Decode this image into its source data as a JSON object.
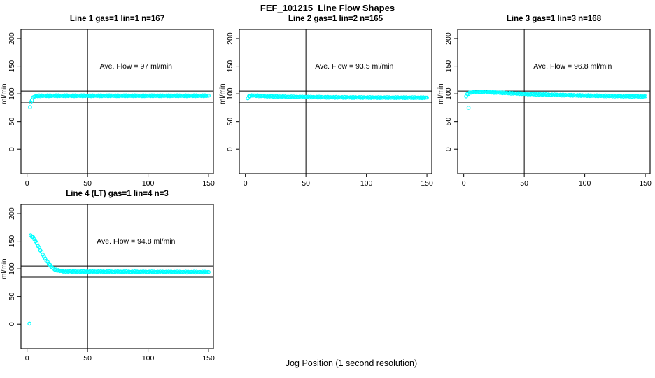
{
  "figure": {
    "title": "FEF_101215  Line Flow Shapes",
    "xlabel": "Jog Position (1 second resolution)",
    "ylabel": "ml/min"
  },
  "style": {
    "point_color": "#00FFFF",
    "axis_color": "#000000",
    "background": "#FFFFFF",
    "point_marker": "open-circle"
  },
  "chart_data": [
    {
      "type": "scatter",
      "title": "Line 1 gas=1 lin=1 n=167",
      "annotation": "Ave. Flow =  97  ml/min",
      "ave_flow_ml_min": 97,
      "gas": 1,
      "lin": 1,
      "n": 167,
      "xlabel": "Jog Position (1 second resolution)",
      "ylabel": "ml/min",
      "x_ticks": [
        0,
        50,
        100,
        150
      ],
      "y_ticks": [
        0,
        50,
        100,
        150,
        200
      ],
      "xlim": [
        -5,
        154
      ],
      "ylim": [
        -44,
        216.5
      ],
      "ref_hlines": [
        105,
        85
      ],
      "ref_vline": 50,
      "outliers": [
        [
          2.5,
          76
        ]
      ],
      "keypoints": [
        [
          3,
          84
        ],
        [
          4,
          89
        ],
        [
          5,
          93
        ],
        [
          6,
          95
        ],
        [
          8,
          96
        ],
        [
          12,
          96.5
        ],
        [
          25,
          96.5
        ],
        [
          50,
          96.5
        ],
        [
          100,
          96.5
        ],
        [
          150,
          96.5
        ]
      ]
    },
    {
      "type": "scatter",
      "title": "Line 2 gas=1 lin=2 n=165",
      "annotation": "Ave. Flow =  93.5  ml/min",
      "ave_flow_ml_min": 93.5,
      "gas": 1,
      "lin": 2,
      "n": 165,
      "xlabel": "Jog Position (1 second resolution)",
      "ylabel": "ml/min",
      "x_ticks": [
        0,
        50,
        100,
        150
      ],
      "y_ticks": [
        0,
        50,
        100,
        150,
        200
      ],
      "xlim": [
        -5,
        154
      ],
      "ylim": [
        -44,
        216.5
      ],
      "ref_hlines": [
        105,
        85
      ],
      "ref_vline": 50,
      "outliers": [],
      "keypoints": [
        [
          2,
          92.5
        ],
        [
          3,
          95
        ],
        [
          4,
          96.5
        ],
        [
          6,
          97
        ],
        [
          10,
          96.5
        ],
        [
          20,
          95.5
        ],
        [
          35,
          94.5
        ],
        [
          55,
          94
        ],
        [
          80,
          93.5
        ],
        [
          110,
          93.2
        ],
        [
          150,
          93
        ]
      ]
    },
    {
      "type": "scatter",
      "title": "Line 3 gas=1 lin=3 n=168",
      "annotation": "Ave. Flow =  96.8  ml/min",
      "ave_flow_ml_min": 96.8,
      "gas": 1,
      "lin": 3,
      "n": 168,
      "xlabel": "Jog Position (1 second resolution)",
      "ylabel": "ml/min",
      "x_ticks": [
        0,
        50,
        100,
        150
      ],
      "y_ticks": [
        0,
        50,
        100,
        150,
        200
      ],
      "xlim": [
        -5,
        154
      ],
      "ylim": [
        -44,
        216.5
      ],
      "ref_hlines": [
        105,
        85
      ],
      "ref_vline": 50,
      "outliers": [
        [
          4,
          75
        ]
      ],
      "keypoints": [
        [
          2,
          96
        ],
        [
          3,
          99
        ],
        [
          5,
          102
        ],
        [
          8,
          103
        ],
        [
          15,
          103.5
        ],
        [
          25,
          102.5
        ],
        [
          40,
          101
        ],
        [
          55,
          99.5
        ],
        [
          75,
          98
        ],
        [
          95,
          97
        ],
        [
          115,
          96.3
        ],
        [
          135,
          95.6
        ],
        [
          150,
          95.2
        ]
      ]
    },
    {
      "type": "scatter",
      "title": "Line 4 (LT) gas=1 lin=4 n=3",
      "annotation": "Ave. Flow =  94.8  ml/min",
      "ave_flow_ml_min": 94.8,
      "gas": 1,
      "lin": 4,
      "n": 3,
      "xlabel": "Jog Position (1 second resolution)",
      "ylabel": "ml/min",
      "x_ticks": [
        0,
        50,
        100,
        150
      ],
      "y_ticks": [
        0,
        50,
        100,
        150,
        200
      ],
      "xlim": [
        -5,
        154
      ],
      "ylim": [
        -44,
        216.5
      ],
      "ref_hlines": [
        105,
        85
      ],
      "ref_vline": 50,
      "outliers": [
        [
          2,
          1
        ]
      ],
      "keypoints": [
        [
          3,
          160
        ],
        [
          4,
          159
        ],
        [
          5,
          157
        ],
        [
          6,
          154
        ],
        [
          7,
          150
        ],
        [
          8,
          146
        ],
        [
          9,
          142
        ],
        [
          10,
          138
        ],
        [
          12,
          130
        ],
        [
          14,
          122
        ],
        [
          16,
          115
        ],
        [
          18,
          109
        ],
        [
          20,
          104
        ],
        [
          22,
          100
        ],
        [
          24,
          98
        ],
        [
          27,
          96.5
        ],
        [
          30,
          95.5
        ],
        [
          40,
          95
        ],
        [
          60,
          94.8
        ],
        [
          90,
          94.5
        ],
        [
          120,
          94.2
        ],
        [
          150,
          94
        ]
      ]
    }
  ]
}
